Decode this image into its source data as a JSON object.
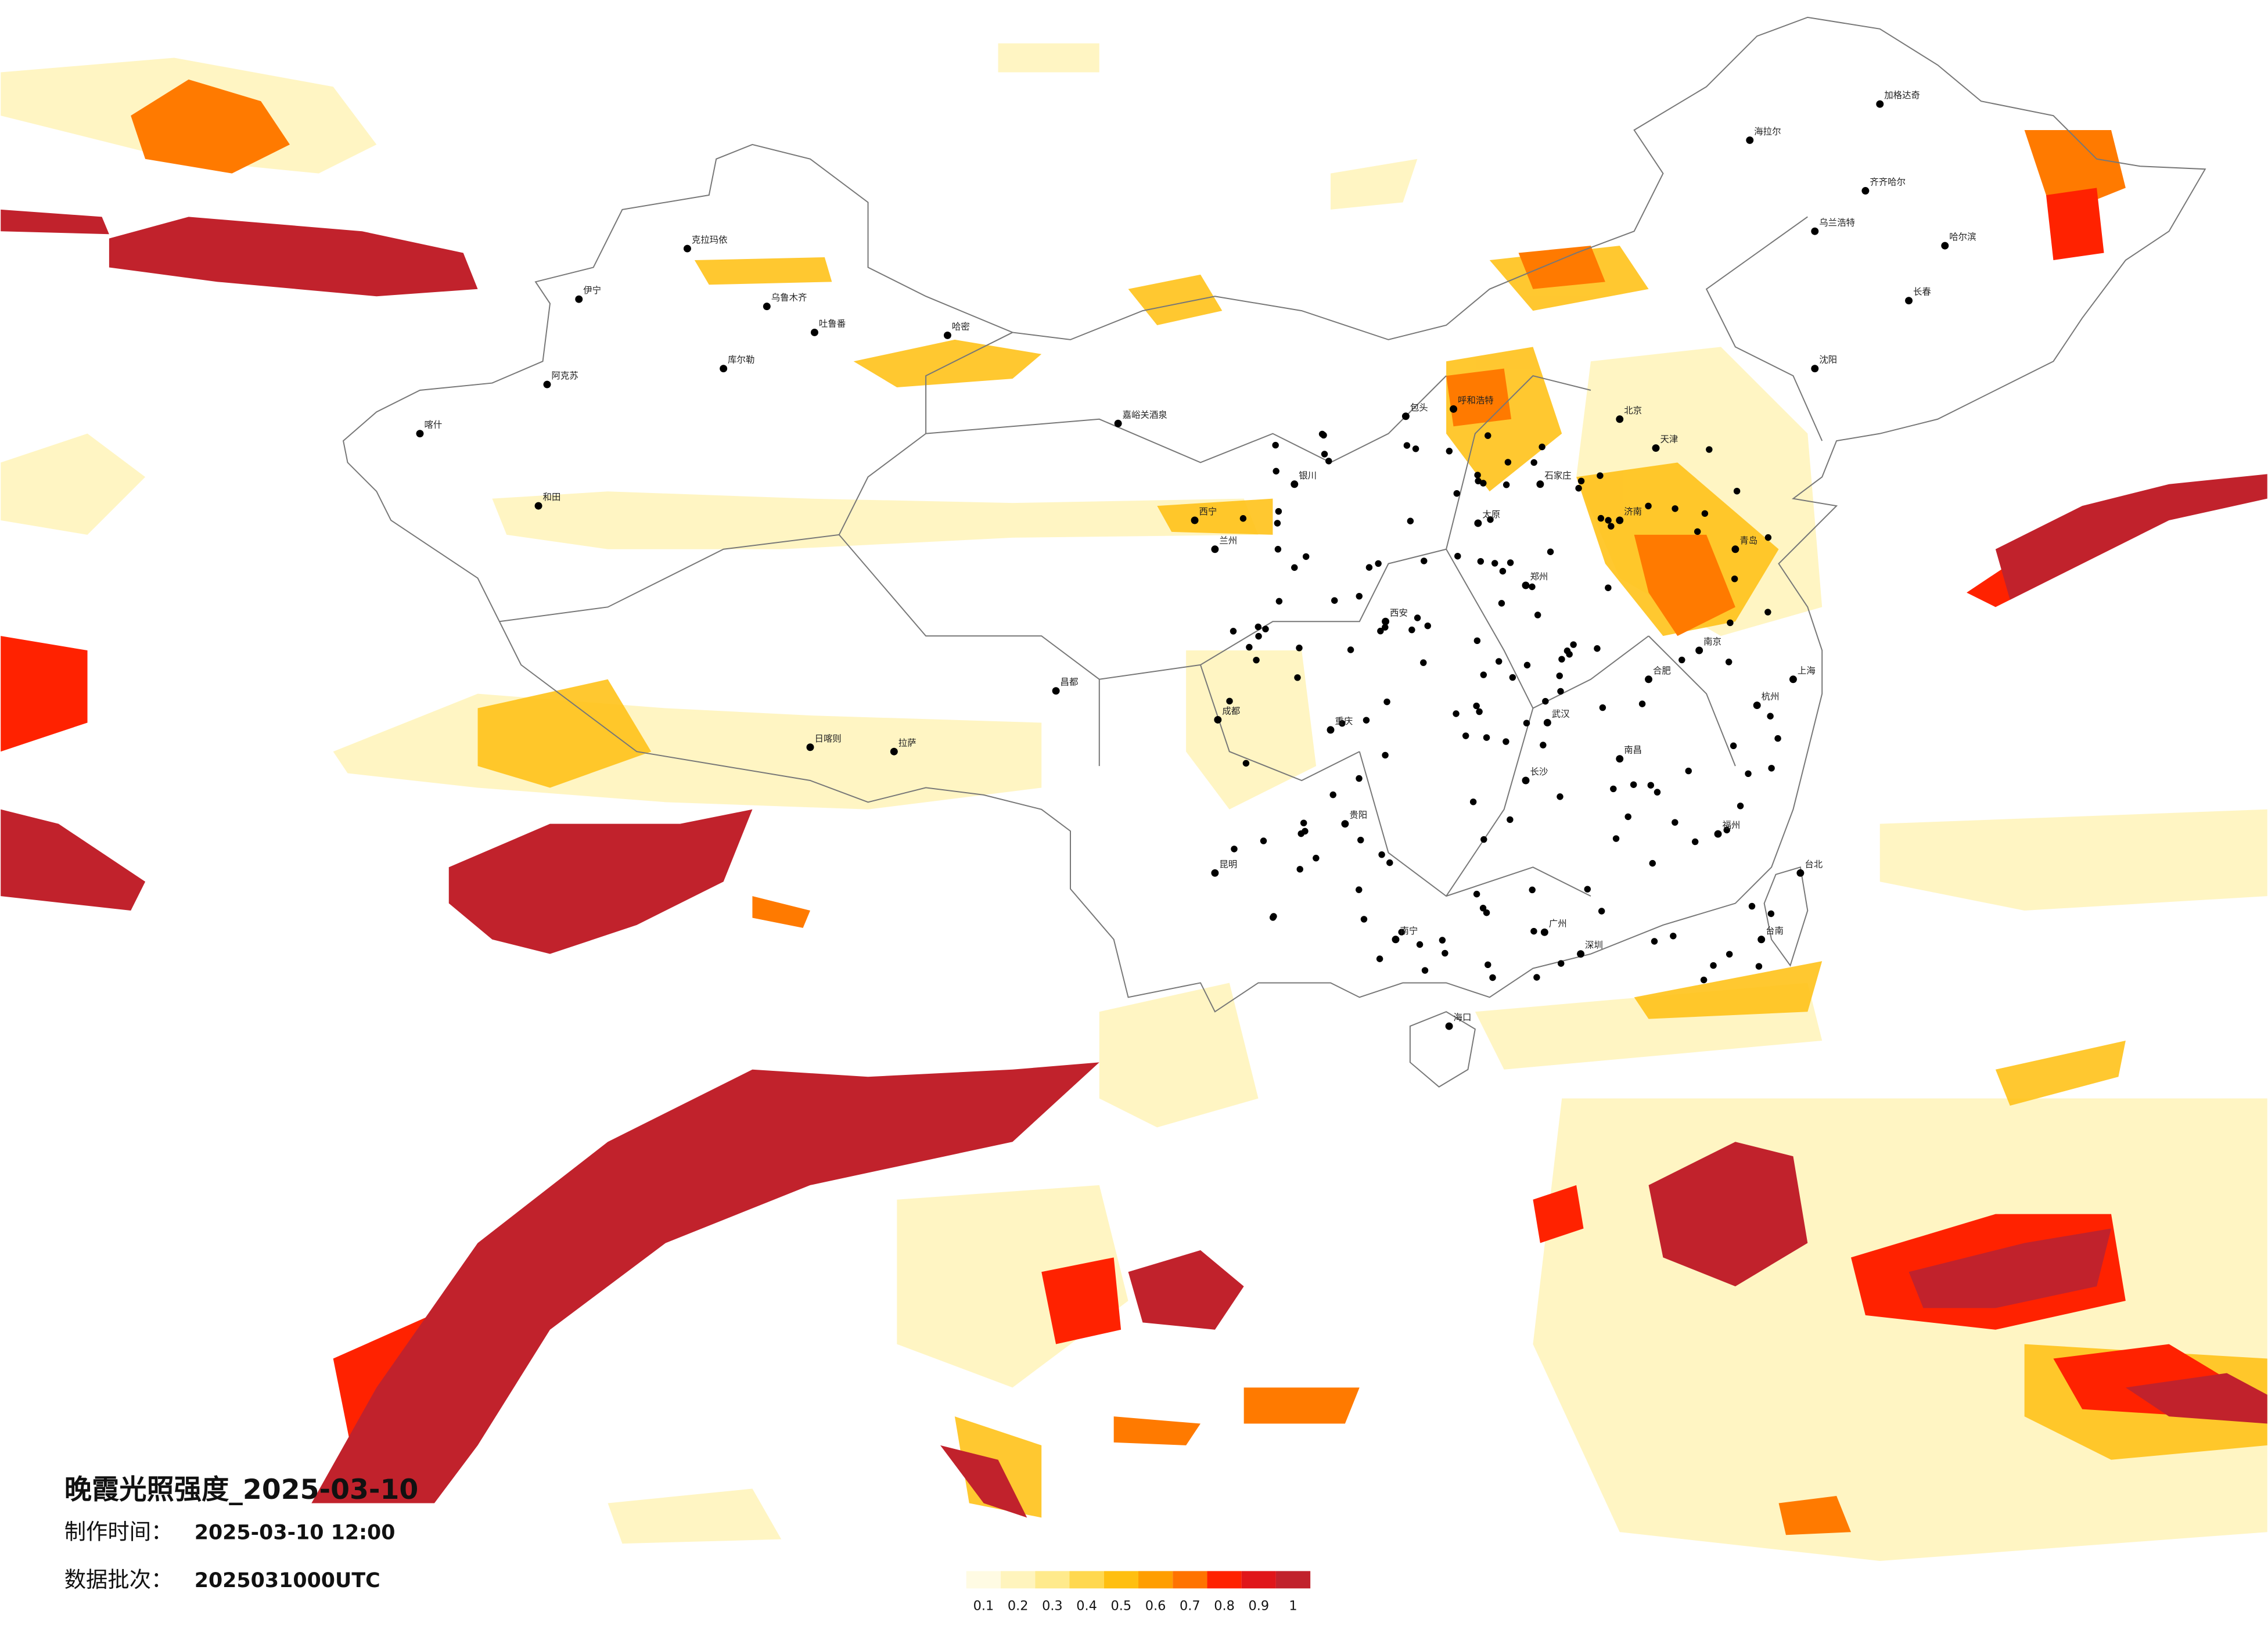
{
  "title": "晚霞光照强度_2025-03-10",
  "info": [
    {
      "label": "制作时间：",
      "value": "2025-03-10 12:00"
    },
    {
      "label": "数据批次：",
      "value": "2025031000UTC"
    }
  ],
  "colorbar": {
    "ticks": [
      0.1,
      0.2,
      0.3,
      0.4,
      0.5,
      0.6,
      0.7,
      0.8,
      0.9,
      1
    ],
    "colors": [
      "#fffbe3",
      "#fff4bd",
      "#ffea8c",
      "#ffd84f",
      "#ffbf10",
      "#ff9e00",
      "#ff7300",
      "#ff2200",
      "#e0161a",
      "#c1222c"
    ]
  },
  "cities": [
    "克拉玛依",
    "伊宁",
    "乌鲁木齐",
    "吐鲁番",
    "哈密",
    "库尔勒",
    "阿克苏",
    "喀什",
    "和田",
    "嘉峪关酒泉",
    "西宁",
    "兰州",
    "银川",
    "拉萨",
    "日喀则",
    "昌都",
    "成都",
    "重庆",
    "昆明",
    "贵阳",
    "南宁",
    "海口",
    "广州",
    "深圳",
    "福州",
    "台北",
    "台南",
    "杭州",
    "上海",
    "南京",
    "合肥",
    "武汉",
    "长沙",
    "南昌",
    "郑州",
    "西安",
    "太原",
    "石家庄",
    "北京",
    "天津",
    "济南",
    "青岛",
    "沈阳",
    "长春",
    "哈尔滨",
    "齐齐哈尔",
    "海拉尔",
    "加格达奇",
    "呼和浩特",
    "包头",
    "乌兰浩特"
  ]
}
